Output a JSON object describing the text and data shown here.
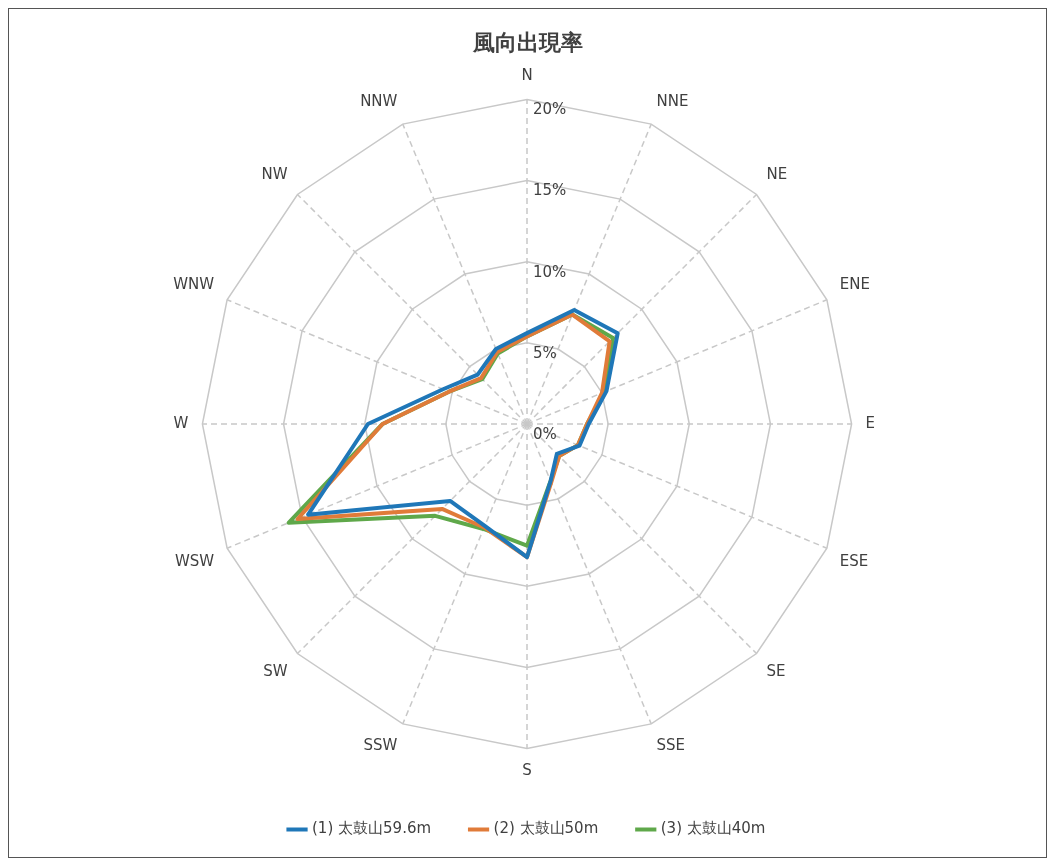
{
  "chart_data": {
    "type": "radar",
    "title": "風向出現率",
    "categories": [
      "N",
      "NNE",
      "NE",
      "ENE",
      "E",
      "ESE",
      "SE",
      "SSE",
      "S",
      "SSW",
      "SW",
      "WSW",
      "W",
      "WNW",
      "NW",
      "NNW"
    ],
    "series": [
      {
        "name": "(1) 太鼓山59.6m",
        "color": "#1f77b8",
        "values": [
          5.6,
          7.6,
          7.9,
          5.3,
          3.8,
          3.5,
          2.6,
          3.8,
          8.2,
          6.8,
          6.7,
          14.6,
          9.8,
          5.6,
          4.3,
          5.0
        ]
      },
      {
        "name": "(2) 太鼓山50m",
        "color": "#e07b39",
        "values": [
          5.4,
          7.3,
          7.2,
          5.0,
          3.7,
          3.4,
          2.8,
          3.9,
          8.2,
          6.9,
          7.4,
          15.3,
          8.9,
          5.2,
          4.0,
          4.8
        ]
      },
      {
        "name": "(3) 太鼓山40m",
        "color": "#5fa84a",
        "values": [
          5.4,
          7.3,
          7.5,
          5.2,
          3.7,
          3.4,
          2.8,
          3.8,
          7.5,
          7.0,
          8.0,
          15.9,
          8.9,
          5.2,
          3.9,
          4.7
        ]
      }
    ],
    "ylim": [
      0,
      20
    ],
    "yticks": [
      {
        "value": 0,
        "label": "0%"
      },
      {
        "value": 5,
        "label": "5%"
      },
      {
        "value": 10,
        "label": "10%"
      },
      {
        "value": 15,
        "label": "15%"
      },
      {
        "value": 20,
        "label": "20%"
      }
    ],
    "grid": true,
    "legend": "bottom",
    "marker": "none",
    "line_style": "solid"
  }
}
